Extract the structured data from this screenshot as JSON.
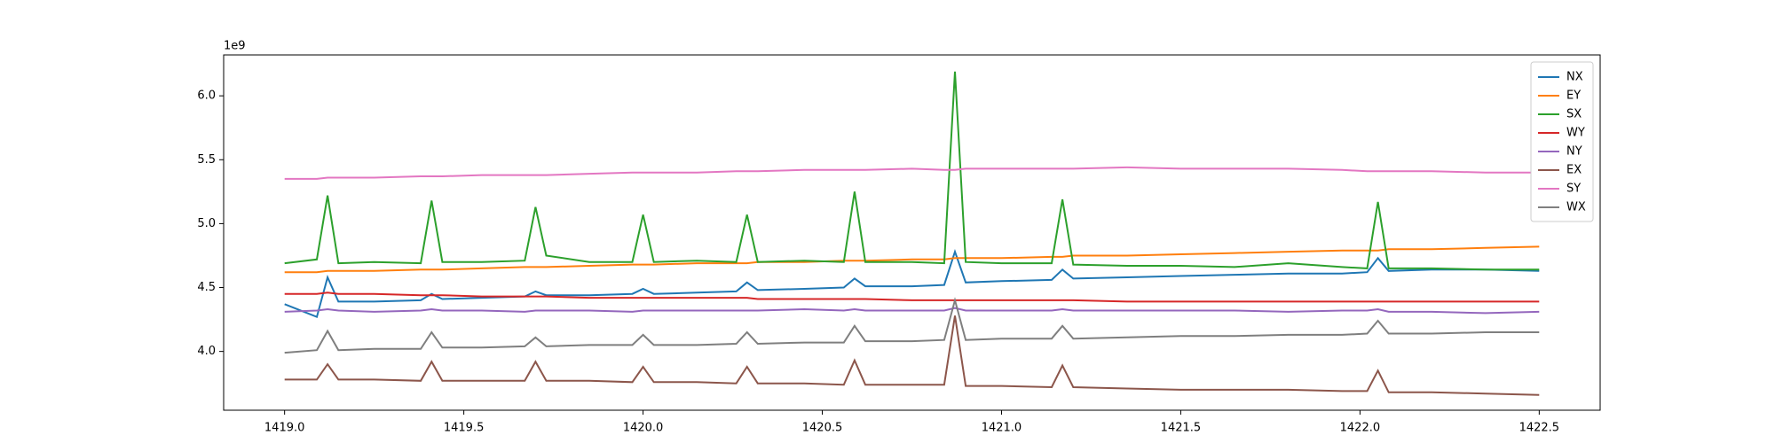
{
  "chart_data": {
    "type": "line",
    "offset_label": "1e9",
    "x": [
      1419.0,
      1419.09,
      1419.12,
      1419.15,
      1419.25,
      1419.38,
      1419.41,
      1419.44,
      1419.55,
      1419.67,
      1419.7,
      1419.73,
      1419.85,
      1419.97,
      1420.0,
      1420.03,
      1420.15,
      1420.26,
      1420.29,
      1420.32,
      1420.45,
      1420.56,
      1420.59,
      1420.62,
      1420.75,
      1420.84,
      1420.87,
      1420.9,
      1421.0,
      1421.14,
      1421.17,
      1421.2,
      1421.35,
      1421.5,
      1421.65,
      1421.8,
      1421.95,
      1422.02,
      1422.05,
      1422.08,
      1422.2,
      1422.35,
      1422.5
    ],
    "series": [
      {
        "name": "NX",
        "color": "#1f77b4",
        "values": [
          4.37,
          4.27,
          4.58,
          4.39,
          4.39,
          4.4,
          4.45,
          4.41,
          4.42,
          4.43,
          4.47,
          4.44,
          4.44,
          4.45,
          4.49,
          4.45,
          4.46,
          4.47,
          4.54,
          4.48,
          4.49,
          4.5,
          4.57,
          4.51,
          4.51,
          4.52,
          4.78,
          4.54,
          4.55,
          4.56,
          4.64,
          4.57,
          4.58,
          4.59,
          4.6,
          4.61,
          4.61,
          4.62,
          4.73,
          4.63,
          4.64,
          4.64,
          4.63
        ]
      },
      {
        "name": "EY",
        "color": "#ff7f0e",
        "values": [
          4.62,
          4.62,
          4.63,
          4.63,
          4.63,
          4.64,
          4.64,
          4.64,
          4.65,
          4.66,
          4.66,
          4.66,
          4.67,
          4.68,
          4.68,
          4.68,
          4.69,
          4.69,
          4.69,
          4.7,
          4.7,
          4.71,
          4.71,
          4.71,
          4.72,
          4.72,
          4.73,
          4.73,
          4.73,
          4.74,
          4.74,
          4.75,
          4.75,
          4.76,
          4.77,
          4.78,
          4.79,
          4.79,
          4.79,
          4.8,
          4.8,
          4.81,
          4.82
        ]
      },
      {
        "name": "SX",
        "color": "#2ca02c",
        "values": [
          4.69,
          4.72,
          5.22,
          4.69,
          4.7,
          4.69,
          5.18,
          4.7,
          4.7,
          4.71,
          5.13,
          4.75,
          4.7,
          4.7,
          5.07,
          4.7,
          4.71,
          4.7,
          5.07,
          4.7,
          4.71,
          4.7,
          5.25,
          4.7,
          4.7,
          4.69,
          6.19,
          4.7,
          4.69,
          4.69,
          5.19,
          4.68,
          4.67,
          4.67,
          4.66,
          4.69,
          4.66,
          4.65,
          5.17,
          4.65,
          4.65,
          4.64,
          4.64
        ]
      },
      {
        "name": "WY",
        "color": "#d62728",
        "values": [
          4.45,
          4.45,
          4.46,
          4.45,
          4.45,
          4.44,
          4.44,
          4.44,
          4.43,
          4.43,
          4.43,
          4.43,
          4.42,
          4.42,
          4.42,
          4.42,
          4.42,
          4.42,
          4.42,
          4.41,
          4.41,
          4.41,
          4.41,
          4.41,
          4.4,
          4.4,
          4.4,
          4.4,
          4.4,
          4.4,
          4.4,
          4.4,
          4.39,
          4.39,
          4.39,
          4.39,
          4.39,
          4.39,
          4.39,
          4.39,
          4.39,
          4.39,
          4.39
        ]
      },
      {
        "name": "NY",
        "color": "#9467bd",
        "values": [
          4.31,
          4.32,
          4.33,
          4.32,
          4.31,
          4.32,
          4.33,
          4.32,
          4.32,
          4.31,
          4.32,
          4.32,
          4.32,
          4.31,
          4.32,
          4.32,
          4.32,
          4.32,
          4.32,
          4.32,
          4.33,
          4.32,
          4.33,
          4.32,
          4.32,
          4.32,
          4.34,
          4.32,
          4.32,
          4.32,
          4.33,
          4.32,
          4.32,
          4.32,
          4.32,
          4.31,
          4.32,
          4.32,
          4.33,
          4.31,
          4.31,
          4.3,
          4.31
        ]
      },
      {
        "name": "EX",
        "color": "#8c564b",
        "values": [
          3.78,
          3.78,
          3.9,
          3.78,
          3.78,
          3.77,
          3.92,
          3.77,
          3.77,
          3.77,
          3.92,
          3.77,
          3.77,
          3.76,
          3.88,
          3.76,
          3.76,
          3.75,
          3.88,
          3.75,
          3.75,
          3.74,
          3.93,
          3.74,
          3.74,
          3.74,
          4.28,
          3.73,
          3.73,
          3.72,
          3.89,
          3.72,
          3.71,
          3.7,
          3.7,
          3.7,
          3.69,
          3.69,
          3.85,
          3.68,
          3.68,
          3.67,
          3.66
        ]
      },
      {
        "name": "SY",
        "color": "#e377c2",
        "values": [
          5.35,
          5.35,
          5.36,
          5.36,
          5.36,
          5.37,
          5.37,
          5.37,
          5.38,
          5.38,
          5.38,
          5.38,
          5.39,
          5.4,
          5.4,
          5.4,
          5.4,
          5.41,
          5.41,
          5.41,
          5.42,
          5.42,
          5.42,
          5.42,
          5.43,
          5.42,
          5.42,
          5.43,
          5.43,
          5.43,
          5.43,
          5.43,
          5.44,
          5.43,
          5.43,
          5.43,
          5.42,
          5.41,
          5.41,
          5.41,
          5.41,
          5.4,
          5.4
        ]
      },
      {
        "name": "WX",
        "color": "#7f7f7f",
        "values": [
          3.99,
          4.01,
          4.16,
          4.01,
          4.02,
          4.02,
          4.15,
          4.03,
          4.03,
          4.04,
          4.11,
          4.04,
          4.05,
          4.05,
          4.13,
          4.05,
          4.05,
          4.06,
          4.15,
          4.06,
          4.07,
          4.07,
          4.2,
          4.08,
          4.08,
          4.09,
          4.4,
          4.09,
          4.1,
          4.1,
          4.2,
          4.1,
          4.11,
          4.12,
          4.12,
          4.13,
          4.13,
          4.14,
          4.24,
          4.14,
          4.14,
          4.15,
          4.15
        ]
      }
    ],
    "xlim": [
      1418.83,
      1422.67
    ],
    "ylim": [
      3.54,
      6.32
    ],
    "xticks": [
      {
        "value": 1419,
        "label": "1419.0"
      },
      1419.5,
      {
        "value": 1420,
        "label": "1420.0"
      },
      1420.5,
      {
        "value": 1421,
        "label": "1421.0"
      },
      1421.5,
      {
        "value": 1422,
        "label": "1422.0"
      },
      1422.5
    ],
    "yticks": [
      {
        "value": 4,
        "label": "4.0"
      },
      4.5,
      {
        "value": 5,
        "label": "5.0"
      },
      5.5,
      {
        "value": 6,
        "label": "6.0"
      }
    ],
    "legend": "upper right"
  }
}
